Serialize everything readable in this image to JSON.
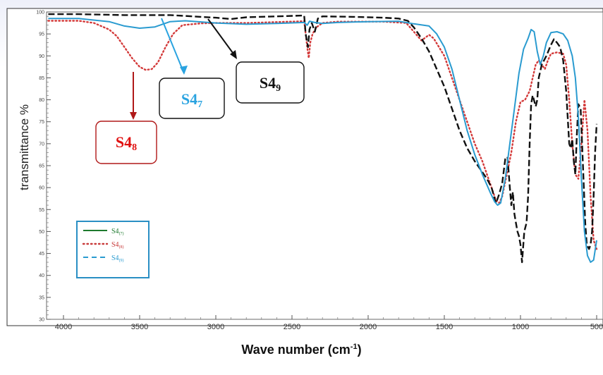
{
  "colors": {
    "s47": "#2a9bd0",
    "s48": "#d33a3a",
    "s49": "#111111",
    "legend_border": "#2a8fc4",
    "s47_box_text": "#2aa3e0",
    "s48_box_text": "#e01010",
    "s48_box_border": "#b01818"
  },
  "axis": {
    "y_label": "transmittance %",
    "x_label_main": "Wave number (cm",
    "x_label_sup": "-1",
    "x_label_end": ")"
  },
  "legend": {
    "entries": [
      {
        "base": "S4",
        "sub": "(7)",
        "style": "solid",
        "color": "#1e7a2e"
      },
      {
        "base": "S4",
        "sub": "(8)",
        "style": "dotted",
        "color": "#c83a3a"
      },
      {
        "base": "S4",
        "sub": "(9)",
        "style": "dashed",
        "color": "#2a9bd0"
      }
    ]
  },
  "annotations": [
    {
      "id": "s47",
      "base": "S4",
      "sub": "7"
    },
    {
      "id": "s48",
      "base": "S4",
      "sub": "8"
    },
    {
      "id": "s49",
      "base": "S4",
      "sub": "9"
    }
  ],
  "chart_data": {
    "type": "line",
    "xlabel": "Wave number (cm-1)",
    "ylabel": "transmittance %",
    "xlim": [
      4000,
      500
    ],
    "ylim": [
      30,
      100
    ],
    "x_ticks": [
      4000,
      3500,
      3000,
      2500,
      2000,
      1500,
      1000,
      500
    ],
    "x_tick_labels": [
      "4000",
      "3500",
      "3000",
      "2500",
      "2000",
      "1500",
      "1000",
      "500"
    ],
    "y_ticks": [
      30,
      35,
      40,
      45,
      50,
      55,
      60,
      65,
      70,
      75,
      80,
      85,
      90,
      95,
      100
    ],
    "y_tick_labels": [
      "30",
      "35",
      "40",
      "45",
      "50",
      "55",
      "60",
      "65",
      "70",
      "75",
      "80",
      "85",
      "90",
      "95",
      "100"
    ],
    "grid": false,
    "legend_position": "bottom-left",
    "series": [
      {
        "name": "S4(7)",
        "style": "solid",
        "color": "#2a9bd0",
        "points": [
          [
            4100,
            98.5
          ],
          [
            3900,
            98.5
          ],
          [
            3700,
            97.8
          ],
          [
            3600,
            96.8
          ],
          [
            3500,
            96.3
          ],
          [
            3400,
            96.6
          ],
          [
            3300,
            97.8
          ],
          [
            3200,
            98.0
          ],
          [
            3000,
            97.5
          ],
          [
            2800,
            97.2
          ],
          [
            2600,
            97.4
          ],
          [
            2420,
            97.6
          ],
          [
            2400,
            97.0
          ],
          [
            2385,
            97.9
          ],
          [
            2350,
            97.6
          ],
          [
            2300,
            97.4
          ],
          [
            2200,
            97.6
          ],
          [
            2000,
            97.8
          ],
          [
            1800,
            97.9
          ],
          [
            1700,
            97.3
          ],
          [
            1600,
            96.8
          ],
          [
            1550,
            95.0
          ],
          [
            1500,
            92.0
          ],
          [
            1450,
            87.0
          ],
          [
            1400,
            80.0
          ],
          [
            1350,
            73.0
          ],
          [
            1300,
            67.5
          ],
          [
            1250,
            63.0
          ],
          [
            1200,
            59.0
          ],
          [
            1170,
            56.8
          ],
          [
            1150,
            56.0
          ],
          [
            1130,
            56.5
          ],
          [
            1100,
            62.0
          ],
          [
            1070,
            70.0
          ],
          [
            1040,
            78.0
          ],
          [
            1010,
            86.0
          ],
          [
            980,
            91.5
          ],
          [
            950,
            94.0
          ],
          [
            930,
            96.0
          ],
          [
            910,
            95.5
          ],
          [
            890,
            91.0
          ],
          [
            870,
            88.0
          ],
          [
            850,
            90.0
          ],
          [
            830,
            93.0
          ],
          [
            800,
            95.3
          ],
          [
            760,
            95.5
          ],
          [
            720,
            95.0
          ],
          [
            690,
            93.5
          ],
          [
            660,
            90.0
          ],
          [
            640,
            85.0
          ],
          [
            620,
            76.0
          ],
          [
            600,
            62.0
          ],
          [
            580,
            50.0
          ],
          [
            560,
            44.5
          ],
          [
            540,
            43.0
          ],
          [
            520,
            43.5
          ],
          [
            500,
            48.0
          ]
        ]
      },
      {
        "name": "S4(8)",
        "style": "dotted",
        "color": "#d33a3a",
        "points": [
          [
            4100,
            98.0
          ],
          [
            3900,
            98.0
          ],
          [
            3800,
            97.5
          ],
          [
            3700,
            96.0
          ],
          [
            3650,
            94.5
          ],
          [
            3600,
            92.0
          ],
          [
            3550,
            89.5
          ],
          [
            3500,
            87.5
          ],
          [
            3460,
            86.8
          ],
          [
            3420,
            87.0
          ],
          [
            3380,
            88.5
          ],
          [
            3330,
            92.0
          ],
          [
            3280,
            95.0
          ],
          [
            3220,
            97.0
          ],
          [
            3100,
            97.4
          ],
          [
            3000,
            97.5
          ],
          [
            2800,
            97.5
          ],
          [
            2600,
            97.7
          ],
          [
            2420,
            97.9
          ],
          [
            2400,
            92.0
          ],
          [
            2390,
            89.5
          ],
          [
            2380,
            93.0
          ],
          [
            2365,
            95.0
          ],
          [
            2340,
            96.5
          ],
          [
            2300,
            97.5
          ],
          [
            2200,
            97.8
          ],
          [
            1900,
            97.8
          ],
          [
            1750,
            97.5
          ],
          [
            1700,
            95.5
          ],
          [
            1650,
            93.5
          ],
          [
            1600,
            94.8
          ],
          [
            1570,
            94.0
          ],
          [
            1500,
            90.0
          ],
          [
            1450,
            85.0
          ],
          [
            1400,
            80.0
          ],
          [
            1350,
            75.0
          ],
          [
            1300,
            70.0
          ],
          [
            1250,
            66.0
          ],
          [
            1200,
            61.0
          ],
          [
            1160,
            57.0
          ],
          [
            1140,
            56.5
          ],
          [
            1120,
            58.0
          ],
          [
            1090,
            63.0
          ],
          [
            1060,
            68.0
          ],
          [
            1030,
            75.0
          ],
          [
            1000,
            79.5
          ],
          [
            970,
            80.0
          ],
          [
            940,
            82.0
          ],
          [
            920,
            85.0
          ],
          [
            900,
            88.0
          ],
          [
            880,
            89.0
          ],
          [
            860,
            88.0
          ],
          [
            840,
            87.0
          ],
          [
            820,
            89.0
          ],
          [
            800,
            90.5
          ],
          [
            760,
            90.8
          ],
          [
            720,
            90.5
          ],
          [
            700,
            88.0
          ],
          [
            680,
            80.0
          ],
          [
            660,
            70.0
          ],
          [
            640,
            63.0
          ],
          [
            620,
            62.0
          ],
          [
            600,
            70.0
          ],
          [
            580,
            80.0
          ],
          [
            560,
            73.0
          ],
          [
            540,
            58.0
          ],
          [
            520,
            48.0
          ],
          [
            500,
            46.0
          ]
        ]
      },
      {
        "name": "S4(9)",
        "style": "dashed",
        "color": "#111111",
        "points": [
          [
            4100,
            99.5
          ],
          [
            3900,
            99.5
          ],
          [
            3600,
            99.3
          ],
          [
            3400,
            99.3
          ],
          [
            3300,
            99.3
          ],
          [
            3200,
            99.1
          ],
          [
            3100,
            98.9
          ],
          [
            3000,
            98.7
          ],
          [
            2900,
            98.4
          ],
          [
            2850,
            98.6
          ],
          [
            2800,
            98.8
          ],
          [
            2600,
            99.0
          ],
          [
            2420,
            99.2
          ],
          [
            2410,
            95.0
          ],
          [
            2395,
            92.0
          ],
          [
            2385,
            96.0
          ],
          [
            2370,
            97.5
          ],
          [
            2350,
            95.5
          ],
          [
            2330,
            98.5
          ],
          [
            2300,
            99.0
          ],
          [
            2100,
            98.9
          ],
          [
            1900,
            98.7
          ],
          [
            1800,
            98.5
          ],
          [
            1740,
            98.0
          ],
          [
            1700,
            96.5
          ],
          [
            1650,
            94.0
          ],
          [
            1600,
            91.0
          ],
          [
            1550,
            87.0
          ],
          [
            1500,
            83.0
          ],
          [
            1450,
            78.0
          ],
          [
            1400,
            73.0
          ],
          [
            1350,
            69.0
          ],
          [
            1300,
            66.0
          ],
          [
            1250,
            63.5
          ],
          [
            1220,
            62.0
          ],
          [
            1190,
            60.0
          ],
          [
            1170,
            57.5
          ],
          [
            1160,
            56.5
          ],
          [
            1140,
            58.5
          ],
          [
            1120,
            61.0
          ],
          [
            1100,
            66.5
          ],
          [
            1085,
            67.0
          ],
          [
            1070,
            60.0
          ],
          [
            1060,
            56.0
          ],
          [
            1050,
            59.0
          ],
          [
            1040,
            54.0
          ],
          [
            1030,
            52.0
          ],
          [
            1020,
            50.0
          ],
          [
            1010,
            49.0
          ],
          [
            1000,
            47.0
          ],
          [
            990,
            43.0
          ],
          [
            975,
            50.0
          ],
          [
            960,
            52.0
          ],
          [
            950,
            58.0
          ],
          [
            940,
            70.0
          ],
          [
            930,
            79.0
          ],
          [
            920,
            81.0
          ],
          [
            900,
            78.5
          ],
          [
            890,
            80.0
          ],
          [
            880,
            85.0
          ],
          [
            860,
            88.0
          ],
          [
            830,
            90.0
          ],
          [
            800,
            92.5
          ],
          [
            780,
            93.8
          ],
          [
            760,
            93.0
          ],
          [
            740,
            92.0
          ],
          [
            720,
            89.0
          ],
          [
            700,
            82.0
          ],
          [
            680,
            70.0
          ],
          [
            670,
            69.0
          ],
          [
            660,
            71.0
          ],
          [
            650,
            66.0
          ],
          [
            640,
            63.0
          ],
          [
            630,
            72.0
          ],
          [
            620,
            79.0
          ],
          [
            605,
            78.0
          ],
          [
            590,
            65.0
          ],
          [
            575,
            52.0
          ],
          [
            565,
            47.0
          ],
          [
            550,
            46.0
          ],
          [
            540,
            47.0
          ],
          [
            530,
            50.0
          ],
          [
            520,
            58.0
          ],
          [
            510,
            68.0
          ],
          [
            500,
            74.5
          ]
        ]
      }
    ]
  }
}
